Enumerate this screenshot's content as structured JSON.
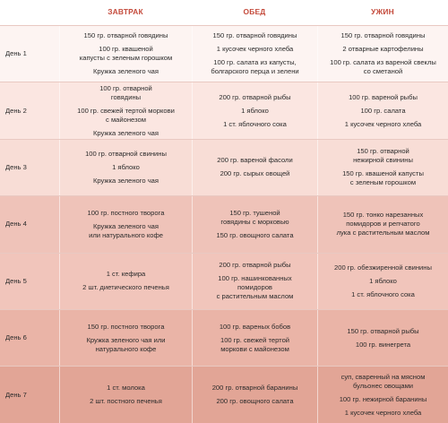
{
  "headers": [
    "",
    "ЗАВТРАК",
    "ОБЕД",
    "УЖИН"
  ],
  "days": [
    {
      "label": "День 1",
      "meals": [
        [
          [
            "150 гр. отварной говядины"
          ],
          [
            "100 гр. квашеной",
            "капусты с зеленым горошком"
          ],
          [
            "Кружка зеленого чая"
          ]
        ],
        [
          [
            "150 гр. отварной говядины"
          ],
          [
            "1 кусочек черного хлеба"
          ],
          [
            "100 гр. салата из капусты,",
            "болгарского перца и зелени"
          ]
        ],
        [
          [
            "150 гр. отварной говядины"
          ],
          [
            "2 отварные картофелины"
          ],
          [
            "100 гр. салата из вареной свеклы",
            "со сметаной"
          ]
        ]
      ]
    },
    {
      "label": "День 2",
      "meals": [
        [
          [
            "100 гр. отварной",
            "говядины"
          ],
          [
            "100 гр. свежей тертой моркови",
            "с майонезом"
          ],
          [
            "Кружка зеленого чая"
          ]
        ],
        [
          [
            "200 гр. отварной рыбы"
          ],
          [
            "1 яблоко"
          ],
          [
            "1 ст. яблочного сока"
          ]
        ],
        [
          [
            "100 гр. вареной рыбы"
          ],
          [
            "100 гр. салата"
          ],
          [
            "1 кусочек черного хлеба"
          ]
        ]
      ]
    },
    {
      "label": "День 3",
      "meals": [
        [
          [
            "100 гр. отварной свинины"
          ],
          [
            "1 яблоко"
          ],
          [
            "Кружка зеленого чая"
          ]
        ],
        [
          [
            "200 гр. вареной фасоли"
          ],
          [
            "200 гр. сырых овощей"
          ]
        ],
        [
          [
            "150 гр. отварной",
            "нежирной свинины"
          ],
          [
            "150 гр. квашеной капусты",
            "с зеленым горошком"
          ]
        ]
      ]
    },
    {
      "label": "День 4",
      "meals": [
        [
          [
            "100 гр. постного творога"
          ],
          [
            "Кружка зеленого чая",
            "или натурального кофе"
          ]
        ],
        [
          [
            "150 гр. тушеной",
            "говядины с морковью"
          ],
          [
            "150 гр. овощного салата"
          ]
        ],
        [
          [
            "150 гр. тонко нарезанных",
            "помидоров и репчатого",
            "лука с растительным маслом"
          ]
        ]
      ]
    },
    {
      "label": "День 5",
      "meals": [
        [
          [
            "1 ст. кефира"
          ],
          [
            "2 шт. диетического печенья"
          ]
        ],
        [
          [
            "200 гр. отварной рыбы"
          ],
          [
            "100 гр. нашинкованных",
            "помидоров",
            "с растительным маслом"
          ]
        ],
        [
          [
            "200 гр. обезжиренной свинины"
          ],
          [
            "1 яблоко"
          ],
          [
            "1 ст. яблочного сока"
          ]
        ]
      ]
    },
    {
      "label": "День 6",
      "meals": [
        [
          [
            "150 гр. постного творога"
          ],
          [
            "Кружка зеленого чая или",
            "натурального кофе"
          ]
        ],
        [
          [
            "100 гр. вареных бобов"
          ],
          [
            "100 гр. свежей тертой",
            "моркови с майонезом"
          ]
        ],
        [
          [
            "150 гр. отварной рыбы"
          ],
          [
            "100 гр. винегрета"
          ]
        ]
      ]
    },
    {
      "label": "День 7",
      "meals": [
        [
          [
            "1 ст. молока"
          ],
          [
            "2 шт. постного печенья"
          ]
        ],
        [
          [
            "200 гр. отварной баранины"
          ],
          [
            "200 гр. овощного салата"
          ]
        ],
        [
          [
            "суп, сваренный на мясном",
            "бульонес овощами"
          ],
          [
            "100 гр. нежирной баранины"
          ],
          [
            "1 кусочек черного хлеба"
          ]
        ]
      ]
    }
  ]
}
